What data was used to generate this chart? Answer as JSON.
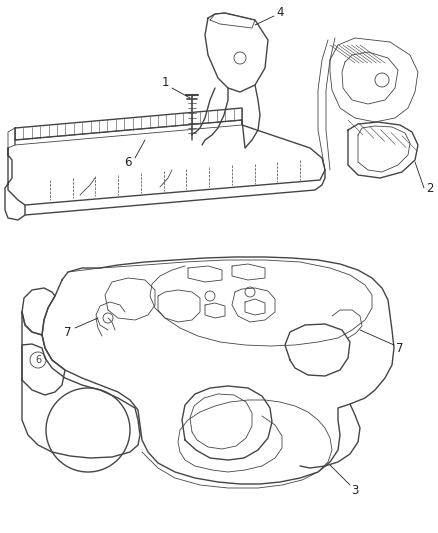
{
  "bg_color": "#ffffff",
  "line_color": "#444444",
  "label_color": "#222222",
  "label_fontsize": 8.5,
  "fig_width": 4.38,
  "fig_height": 5.33,
  "dpi": 100
}
